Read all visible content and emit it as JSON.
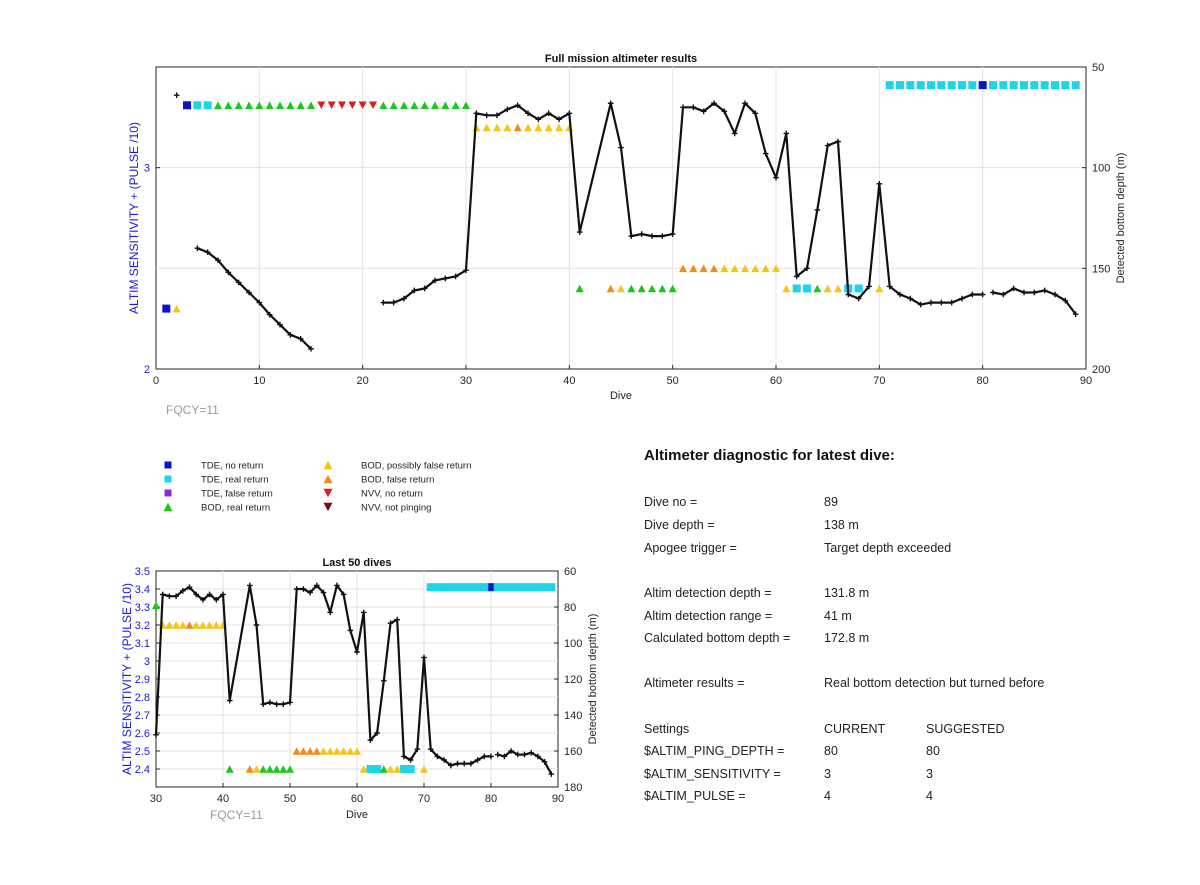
{
  "chart_data": [
    {
      "type": "line",
      "title": "Full mission altimeter results",
      "xlabel": "Dive",
      "ylabel_left": "ALTIM SENSITIVITY + (PULSE /10)",
      "ylabel_right": "Detected bottom depth (m)",
      "xlim": [
        0,
        90
      ],
      "ylim_left": [
        2,
        3.5
      ],
      "ylim_right_reversed": [
        50,
        200
      ],
      "xticks": [
        "0",
        "10",
        "20",
        "30",
        "40",
        "50",
        "60",
        "70",
        "80",
        "90"
      ],
      "yticks_left": [
        "2",
        "3"
      ],
      "yticks_right": [
        "50",
        "100",
        "150",
        "200"
      ],
      "grid": true,
      "annotation": "FQCY=11",
      "series": [
        {
          "name": "Detected bottom depth",
          "color": "#111111",
          "axis": "right",
          "segments": [
            [
              [
                2,
                64
              ]
            ],
            [
              [
                4,
                140
              ],
              [
                5,
                142
              ],
              [
                6,
                146
              ],
              [
                7,
                152
              ],
              [
                8,
                157
              ],
              [
                9,
                162
              ],
              [
                10,
                167
              ],
              [
                11,
                173
              ],
              [
                12,
                178
              ],
              [
                13,
                183
              ],
              [
                14,
                185
              ],
              [
                15,
                190
              ]
            ],
            [
              [
                22,
                167
              ],
              [
                23,
                167
              ],
              [
                24,
                165
              ],
              [
                25,
                161
              ],
              [
                26,
                160
              ],
              [
                27,
                156
              ],
              [
                28,
                155
              ],
              [
                29,
                154
              ],
              [
                30,
                151
              ],
              [
                31,
                73
              ],
              [
                32,
                74
              ],
              [
                33,
                74
              ],
              [
                34,
                71
              ],
              [
                35,
                69
              ],
              [
                36,
                73
              ],
              [
                37,
                76
              ],
              [
                38,
                73
              ],
              [
                39,
                76
              ],
              [
                40,
                73
              ],
              [
                41,
                132
              ],
              [
                44,
                68
              ],
              [
                45,
                90
              ],
              [
                46,
                134
              ],
              [
                47,
                133
              ],
              [
                48,
                134
              ],
              [
                49,
                134
              ],
              [
                50,
                133
              ],
              [
                51,
                70
              ],
              [
                52,
                70
              ],
              [
                53,
                72
              ],
              [
                54,
                68
              ],
              [
                55,
                72
              ],
              [
                56,
                83
              ],
              [
                57,
                68
              ],
              [
                58,
                73
              ],
              [
                59,
                93
              ],
              [
                60,
                105
              ],
              [
                61,
                83
              ],
              [
                62,
                154
              ],
              [
                63,
                150
              ],
              [
                64,
                121
              ],
              [
                65,
                89
              ],
              [
                66,
                87
              ],
              [
                67,
                163
              ],
              [
                68,
                165
              ],
              [
                69,
                159
              ],
              [
                70,
                108
              ],
              [
                71,
                159
              ],
              [
                72,
                163
              ],
              [
                73,
                165
              ],
              [
                74,
                168
              ],
              [
                75,
                167
              ],
              [
                76,
                167
              ],
              [
                77,
                167
              ],
              [
                78,
                165
              ],
              [
                79,
                163
              ],
              [
                80,
                163
              ]
            ],
            [
              [
                81,
                162
              ],
              [
                82,
                163
              ],
              [
                83,
                160
              ],
              [
                84,
                162
              ],
              [
                85,
                162
              ],
              [
                86,
                161
              ],
              [
                87,
                163
              ],
              [
                88,
                166
              ],
              [
                89,
                172.8
              ]
            ]
          ]
        },
        {
          "name": "TDE, no return",
          "color": "#0a14c8",
          "marker": "square",
          "axis": "left",
          "points": [
            [
              1,
              2.3
            ],
            [
              3,
              3.31
            ],
            [
              80,
              3.41
            ]
          ]
        },
        {
          "name": "TDE, real return",
          "color": "#1fd3ea",
          "marker": "square",
          "axis": "left",
          "points": [
            [
              4,
              3.31
            ],
            [
              5,
              3.31
            ],
            [
              62,
              2.4
            ],
            [
              63,
              2.4
            ],
            [
              67,
              2.4
            ],
            [
              68,
              2.4
            ],
            [
              71,
              3.41
            ],
            [
              72,
              3.41
            ],
            [
              73,
              3.41
            ],
            [
              74,
              3.41
            ],
            [
              75,
              3.41
            ],
            [
              76,
              3.41
            ],
            [
              77,
              3.41
            ],
            [
              78,
              3.41
            ],
            [
              79,
              3.41
            ],
            [
              81,
              3.41
            ],
            [
              82,
              3.41
            ],
            [
              83,
              3.41
            ],
            [
              84,
              3.41
            ],
            [
              85,
              3.41
            ],
            [
              86,
              3.41
            ],
            [
              87,
              3.41
            ],
            [
              88,
              3.41
            ],
            [
              89,
              3.41
            ]
          ]
        },
        {
          "name": "BOD, real return",
          "color": "#19c819",
          "marker": "triangle-up",
          "axis": "left",
          "points": [
            [
              6,
              3.31
            ],
            [
              7,
              3.31
            ],
            [
              8,
              3.31
            ],
            [
              9,
              3.31
            ],
            [
              10,
              3.31
            ],
            [
              11,
              3.31
            ],
            [
              12,
              3.31
            ],
            [
              13,
              3.31
            ],
            [
              14,
              3.31
            ],
            [
              15,
              3.31
            ],
            [
              22,
              3.31
            ],
            [
              23,
              3.31
            ],
            [
              24,
              3.31
            ],
            [
              25,
              3.31
            ],
            [
              26,
              3.31
            ],
            [
              27,
              3.31
            ],
            [
              28,
              3.31
            ],
            [
              29,
              3.31
            ],
            [
              30,
              3.31
            ],
            [
              41,
              2.4
            ],
            [
              46,
              2.4
            ],
            [
              47,
              2.4
            ],
            [
              48,
              2.4
            ],
            [
              49,
              2.4
            ],
            [
              50,
              2.4
            ],
            [
              64,
              2.4
            ]
          ]
        },
        {
          "name": "BOD, possibly false return",
          "color": "#f5c518",
          "marker": "triangle-up",
          "axis": "left",
          "points": [
            [
              2,
              2.3
            ],
            [
              31,
              3.2
            ],
            [
              32,
              3.2
            ],
            [
              33,
              3.2
            ],
            [
              34,
              3.2
            ],
            [
              36,
              3.2
            ],
            [
              37,
              3.2
            ],
            [
              38,
              3.2
            ],
            [
              39,
              3.2
            ],
            [
              40,
              3.2
            ],
            [
              45,
              2.4
            ],
            [
              55,
              2.5
            ],
            [
              56,
              2.5
            ],
            [
              57,
              2.5
            ],
            [
              58,
              2.5
            ],
            [
              59,
              2.5
            ],
            [
              60,
              2.5
            ],
            [
              61,
              2.4
            ],
            [
              65,
              2.4
            ],
            [
              66,
              2.4
            ],
            [
              70,
              2.4
            ]
          ]
        },
        {
          "name": "BOD, false return",
          "color": "#f08c19",
          "marker": "triangle-up",
          "axis": "left",
          "points": [
            [
              35,
              3.2
            ],
            [
              44,
              2.4
            ],
            [
              51,
              2.5
            ],
            [
              52,
              2.5
            ],
            [
              53,
              2.5
            ],
            [
              54,
              2.5
            ]
          ]
        },
        {
          "name": "NVV, no return",
          "color": "#dc1e1e",
          "marker": "triangle-down",
          "axis": "left",
          "points": [
            [
              16,
              3.31
            ],
            [
              17,
              3.31
            ],
            [
              18,
              3.31
            ],
            [
              19,
              3.31
            ],
            [
              20,
              3.31
            ],
            [
              21,
              3.31
            ]
          ]
        }
      ]
    },
    {
      "type": "line",
      "title": "Last 50 dives",
      "xlabel": "Dive",
      "ylabel_left": "ALTIM SENSITIVITY + (PULSE /10)",
      "ylabel_right": "Detected bottom depth (m)",
      "xlim": [
        30,
        90
      ],
      "ylim_left": [
        2.3,
        3.5
      ],
      "ylim_right_reversed": [
        60,
        180
      ],
      "xticks": [
        "30",
        "40",
        "50",
        "60",
        "70",
        "80",
        "90"
      ],
      "yticks_left": [
        "2.4",
        "2.5",
        "2.6",
        "2.7",
        "2.8",
        "2.9",
        "3",
        "3.1",
        "3.2",
        "3.3",
        "3.4",
        "3.5"
      ],
      "yticks_right": [
        "60",
        "80",
        "100",
        "120",
        "140",
        "160",
        "180"
      ],
      "grid": true,
      "annotation": "FQCY=11"
    }
  ],
  "legend": {
    "items": [
      {
        "label": "TDE, no return",
        "color": "#0a14c8",
        "marker": "square"
      },
      {
        "label": "TDE, real return",
        "color": "#1fd3ea",
        "marker": "square"
      },
      {
        "label": "TDE, false return",
        "color": "#8a2be2",
        "marker": "square"
      },
      {
        "label": "BOD, real return",
        "color": "#19c819",
        "marker": "triangle-up"
      },
      {
        "label": "BOD, possibly false return",
        "color": "#f5c518",
        "marker": "triangle-up"
      },
      {
        "label": "BOD, false return",
        "color": "#f08c19",
        "marker": "triangle-up"
      },
      {
        "label": "NVV, no return",
        "color": "#dc1e1e",
        "marker": "triangle-down"
      },
      {
        "label": "NVV, not pinging",
        "color": "#7a1010",
        "marker": "triangle-down"
      }
    ]
  },
  "diagnostic": {
    "title": "Altimeter diagnostic for latest dive:",
    "rows": [
      {
        "label": "Dive no =",
        "value": "89"
      },
      {
        "label": "Dive depth =",
        "value": "138 m"
      },
      {
        "label": "Apogee trigger =",
        "value": "Target depth exceeded"
      },
      {
        "label": "Altim detection depth =",
        "value": "131.8 m"
      },
      {
        "label": "Altim detection range =",
        "value": "41 m"
      },
      {
        "label": "Calculated bottom depth =",
        "value": "172.8 m"
      },
      {
        "label": "Altimeter results =",
        "value": "Real bottom detection but turned before"
      }
    ],
    "settings": {
      "header": [
        "Settings",
        "CURRENT",
        "SUGGESTED"
      ],
      "rows": [
        {
          "name": "$ALTIM_PING_DEPTH =",
          "current": "80",
          "suggested": "80"
        },
        {
          "name": "$ALTIM_SENSITIVITY =",
          "current": "3",
          "suggested": "3"
        },
        {
          "name": "$ALTIM_PULSE =",
          "current": "4",
          "suggested": "4"
        }
      ]
    }
  }
}
